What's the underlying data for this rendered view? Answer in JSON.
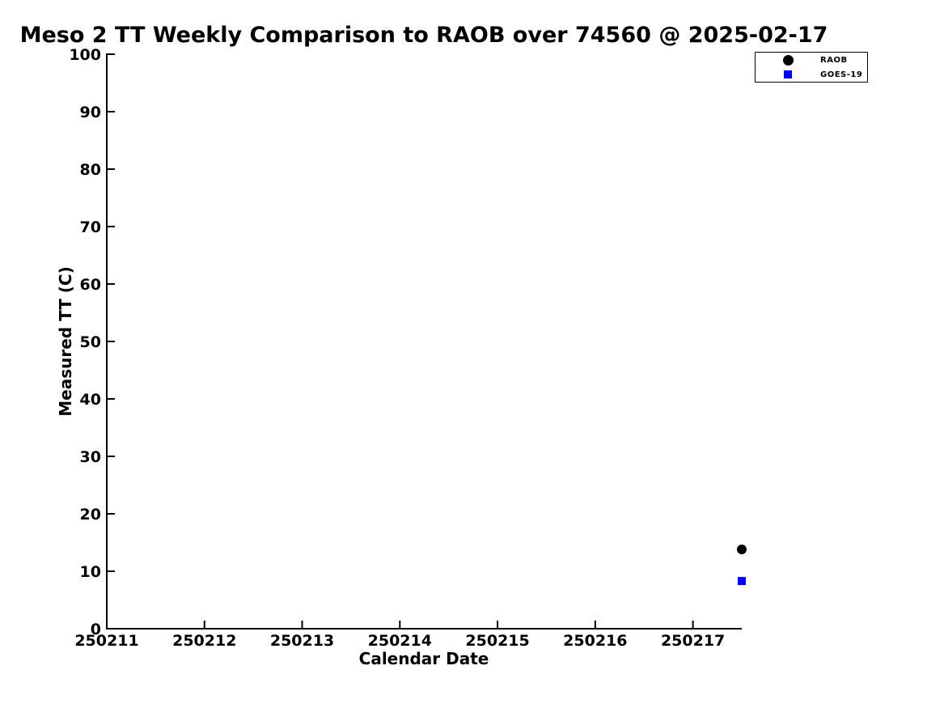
{
  "figure": {
    "background": "#ffffff",
    "text_color": "#000000",
    "axis_color": "#000000"
  },
  "chart_data": {
    "type": "scatter",
    "title": "Meso 2 TT Weekly Comparison to RAOB over 74560 @ 2025-02-17",
    "xlabel": "Calendar Date",
    "ylabel": "Measured TT (C)",
    "xlim": [
      250211,
      250217.5
    ],
    "ylim": [
      0,
      100
    ],
    "x_ticks": [
      250211,
      250212,
      250213,
      250214,
      250215,
      250216,
      250217
    ],
    "y_ticks": [
      0,
      10,
      20,
      30,
      40,
      50,
      60,
      70,
      80,
      90,
      100
    ],
    "grid": false,
    "legend": {
      "position": "top-right",
      "border_color": "#000000"
    },
    "series": [
      {
        "name": "RAOB",
        "marker": "circle",
        "color": "#000000",
        "points": [
          {
            "x": 250217.5,
            "y": 13.8
          }
        ]
      },
      {
        "name": "GOES-19",
        "marker": "square",
        "color": "#0000ff",
        "points": [
          {
            "x": 250217.5,
            "y": 8.3
          }
        ]
      }
    ]
  }
}
